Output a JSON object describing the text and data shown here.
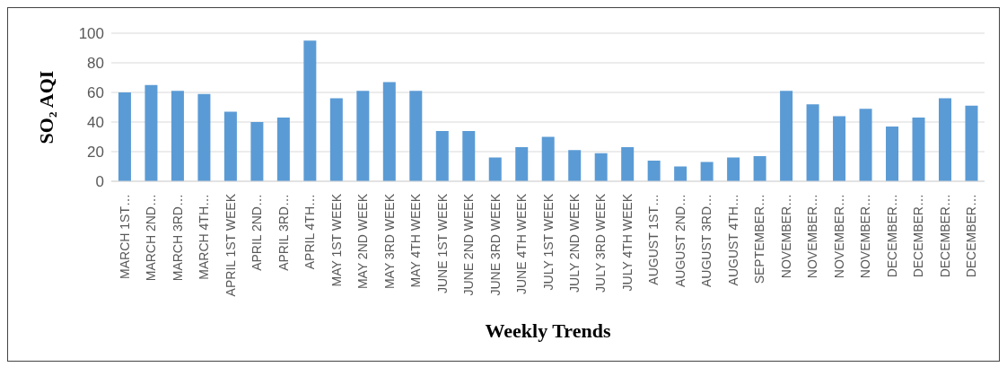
{
  "chart_data": {
    "type": "bar",
    "xlabel": "Weekly Trends",
    "ylabel": "SO₂ AQI",
    "categories": [
      "MARCH 1ST…",
      "MARCH 2ND…",
      "MARCH 3RD…",
      "MARCH 4TH…",
      "APRIL 1ST WEEK",
      "APRIL 2ND…",
      "APRIL 3RD…",
      "APRIL 4TH…",
      "MAY 1ST WEEK",
      "MAY 2ND WEEK",
      "MAY 3RD WEEK",
      "MAY 4TH WEEK",
      "JUNE 1ST WEEK",
      "JUNE 2ND WEEK",
      "JUNE 3RD WEEK",
      "JUNE 4TH WEEK",
      "JULY 1ST WEEK",
      "JULY 2ND WEEK",
      "JULY 3RD WEEK",
      "JULY 4TH WEEK",
      "AUGUST 1ST…",
      "AUGUST 2ND…",
      "AUGUST 3RD…",
      "AUGUST 4TH…",
      "SEPTEMBER…",
      "NOVEMBER…",
      "NOVEMBER…",
      "NOVEMBER…",
      "NOVEMBER…",
      "DECEMBER…",
      "DECEMBER…",
      "DECEMBER…",
      "DECEMBER…"
    ],
    "values": [
      60,
      65,
      61,
      59,
      47,
      40,
      43,
      95,
      56,
      61,
      67,
      61,
      34,
      34,
      16,
      23,
      30,
      21,
      19,
      23,
      14,
      10,
      13,
      16,
      17,
      61,
      52,
      44,
      49,
      37,
      43,
      56,
      51
    ],
    "color": "#5b9bd5",
    "ylim": [
      0,
      100
    ],
    "yticks": [
      0,
      20,
      40,
      60,
      80,
      100
    ],
    "grid": "y"
  }
}
